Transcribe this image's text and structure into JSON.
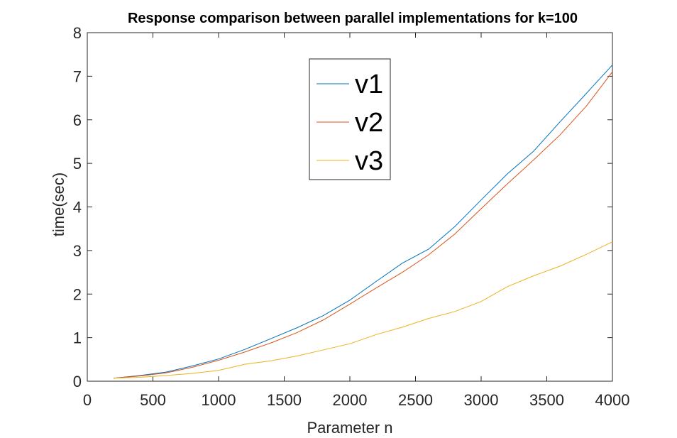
{
  "chart_data": {
    "type": "line",
    "title": "Response comparison between parallel implementations for k=100",
    "xlabel": "Parameter n",
    "ylabel": "time(sec)",
    "xlim": [
      0,
      4000
    ],
    "ylim": [
      0,
      8
    ],
    "xticks": [
      0,
      500,
      1000,
      1500,
      2000,
      2500,
      3000,
      3500,
      4000
    ],
    "yticks": [
      0,
      1,
      2,
      3,
      4,
      5,
      6,
      7,
      8
    ],
    "grid": false,
    "legend_position": "top-center",
    "x": [
      200,
      400,
      600,
      800,
      1000,
      1200,
      1400,
      1600,
      1800,
      2000,
      2200,
      2400,
      2600,
      2800,
      3000,
      3200,
      3400,
      3600,
      3800,
      4000
    ],
    "series": [
      {
        "name": "v1",
        "color": "#0072BD",
        "values": [
          0.07,
          0.13,
          0.21,
          0.35,
          0.51,
          0.73,
          0.98,
          1.23,
          1.51,
          1.86,
          2.29,
          2.71,
          3.03,
          3.55,
          4.16,
          4.76,
          5.28,
          5.95,
          6.6,
          7.26
        ]
      },
      {
        "name": "v2",
        "color": "#D95319",
        "values": [
          0.07,
          0.12,
          0.19,
          0.32,
          0.48,
          0.67,
          0.88,
          1.12,
          1.41,
          1.77,
          2.14,
          2.5,
          2.9,
          3.38,
          3.96,
          4.53,
          5.08,
          5.65,
          6.31,
          7.1
        ]
      },
      {
        "name": "v3",
        "color": "#EDB120",
        "values": [
          0.07,
          0.09,
          0.13,
          0.18,
          0.25,
          0.39,
          0.47,
          0.58,
          0.72,
          0.86,
          1.07,
          1.24,
          1.44,
          1.6,
          1.83,
          2.17,
          2.42,
          2.64,
          2.91,
          3.2
        ]
      }
    ]
  }
}
